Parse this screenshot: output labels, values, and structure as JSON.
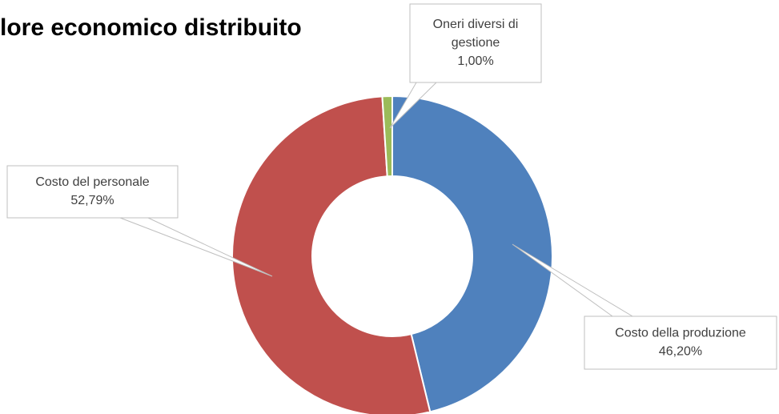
{
  "chart_data": {
    "type": "donut",
    "title": "lore economico distribuito",
    "categories": [
      "Costo della produzione",
      "Costo del personale",
      "Oneri diversi di gestione"
    ],
    "values": [
      46.2,
      52.79,
      1.0
    ],
    "value_labels": [
      "46,20%",
      "52,79%",
      "1,00%"
    ],
    "colors": [
      "#4f81bd",
      "#c0504d",
      "#9bbb59"
    ]
  }
}
